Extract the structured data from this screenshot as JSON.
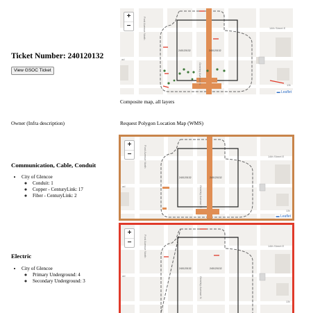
{
  "ticket": {
    "title": "Ticket Number: 240120132",
    "view_button_label": "View GSOC Ticket"
  },
  "composite": {
    "caption": "Composite map, all layers",
    "attribution": "Leaflet"
  },
  "headers": {
    "owner": "Owner (Infra description)",
    "map": "Request Polygon Location Map (WMS)"
  },
  "map_common": {
    "zoom_in": "+",
    "zoom_out": "−",
    "street_14th": "14th Street E",
    "street_ford": "Ford Avenue North",
    "street_greeley": "Greeley Avenue N",
    "ticket_label": "240120132",
    "fragment_13": "13t",
    "fragment_ad": "ad"
  },
  "sections": [
    {
      "title": "Communication, Cable, Conduit",
      "owner": "City of Glencoe",
      "items": [
        "Conduit: 1",
        "Copper - CenturyLink: 17",
        "Fiber - CenturyLink: 2"
      ],
      "border_color": "#c8844a"
    },
    {
      "title": "Electric",
      "owner": "City of Glencoe",
      "items": [
        "Primary Underground: 4",
        "Secondary Underground: 3"
      ],
      "border_color": "#e03a2a"
    }
  ]
}
